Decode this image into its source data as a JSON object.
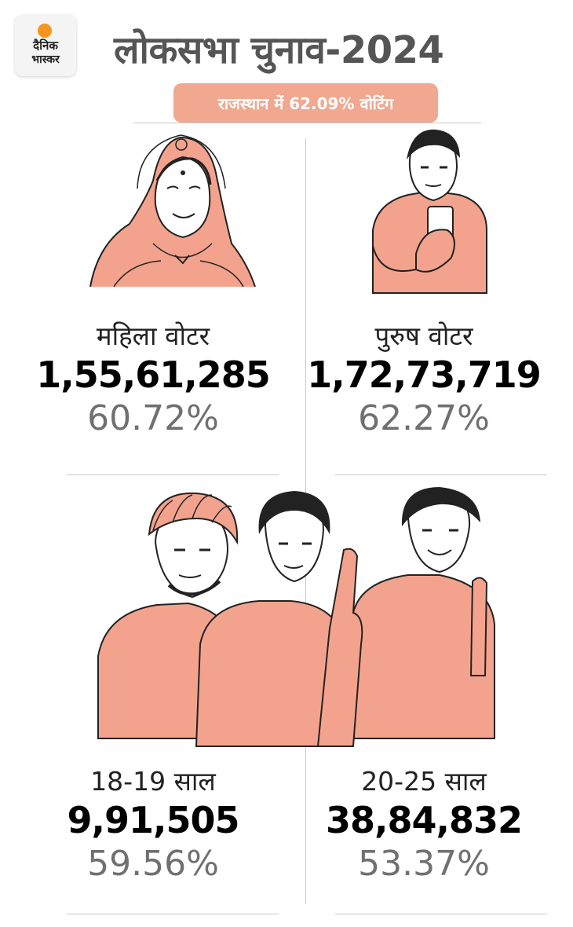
{
  "brand": {
    "line1": "दैनिक",
    "line2": "भास्कर"
  },
  "title": "लोकसभा चुनाव-2024",
  "subtitle": "राजस्थान में 62.09% वोटिंग",
  "stats": [
    {
      "label": "महिला वोटर",
      "value": "1,55,61,285",
      "percent": "60.72%"
    },
    {
      "label": "पुरुष वोटर",
      "value": "1,72,73,719",
      "percent": "62.27%"
    },
    {
      "label": "18-19 साल",
      "value": "9,91,505",
      "percent": "59.56%"
    },
    {
      "label": "20-25 साल",
      "value": "38,84,832",
      "percent": "53.37%"
    }
  ],
  "colors": {
    "accent": "#f0a890",
    "figure_fill": "#f3a38d",
    "text_dark": "#000000",
    "text_grey": "#707070",
    "divider": "#c8c8c8"
  }
}
